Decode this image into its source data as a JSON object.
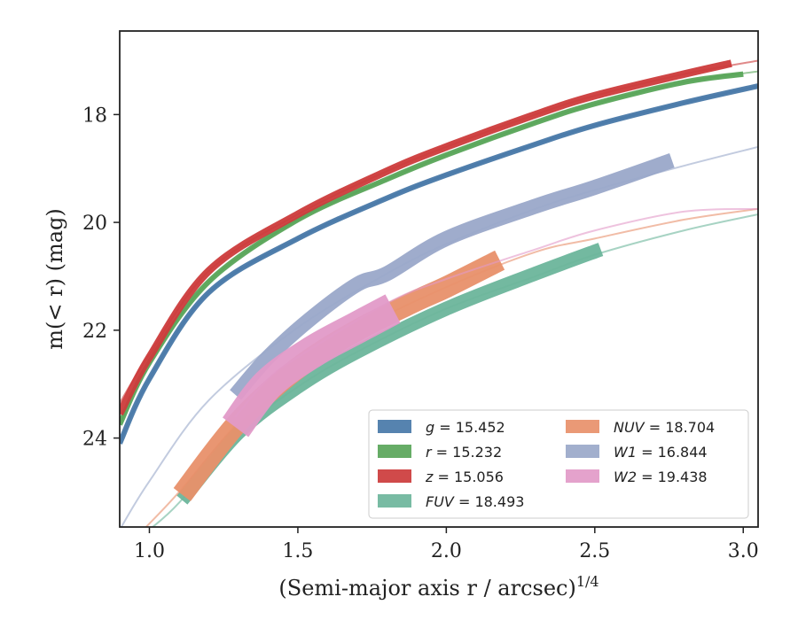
{
  "chart_data": {
    "type": "line",
    "xlabel": "(Semi-major axis r / arcsec)",
    "xlabel_sup": "1/4",
    "ylabel": "m(< r) (mag)",
    "xlim": [
      0.9,
      3.05
    ],
    "ylim": [
      25.65,
      16.45
    ],
    "y_inverted": true,
    "xticks": [
      1.0,
      1.5,
      2.0,
      2.5,
      3.0
    ],
    "xtick_labels": [
      "1.0",
      "1.5",
      "2.0",
      "2.5",
      "3.0"
    ],
    "yticks": [
      18,
      20,
      22,
      24
    ],
    "ytick_labels": [
      "18",
      "20",
      "22",
      "24"
    ],
    "grid": false,
    "legend_position": "lower-right",
    "legend_columns": 2,
    "series": [
      {
        "name": "g",
        "legend_label": "g = 15.452",
        "color": "#4878a8",
        "model_x": [
          0.9,
          1.0,
          1.2,
          1.5,
          1.8,
          2.0,
          2.3,
          2.5,
          2.8,
          3.05
        ],
        "model_y": [
          24.1,
          22.9,
          21.3,
          20.3,
          19.55,
          19.12,
          18.55,
          18.2,
          17.78,
          17.47
        ],
        "data_x": [
          0.9,
          1.0,
          1.2,
          1.5,
          1.8,
          2.0,
          2.3,
          2.5,
          2.8,
          3.05
        ],
        "data_y": [
          24.1,
          22.9,
          21.3,
          20.3,
          19.55,
          19.12,
          18.55,
          18.2,
          17.78,
          17.47
        ],
        "band": 0.05
      },
      {
        "name": "r",
        "legend_label": "r = 15.232",
        "color": "#59a559",
        "model_x": [
          0.9,
          1.0,
          1.2,
          1.5,
          1.8,
          2.0,
          2.3,
          2.5,
          2.8,
          3.05
        ],
        "model_y": [
          23.75,
          22.6,
          21.1,
          19.95,
          19.2,
          18.75,
          18.15,
          17.8,
          17.4,
          17.2
        ],
        "data_x": [
          0.9,
          1.0,
          1.2,
          1.5,
          1.8,
          2.0,
          2.3,
          2.5,
          2.8,
          3.0
        ],
        "data_y": [
          23.75,
          22.6,
          21.1,
          19.95,
          19.2,
          18.75,
          18.15,
          17.8,
          17.4,
          17.25
        ],
        "band": 0.05
      },
      {
        "name": "z",
        "legend_label": "z = 15.056",
        "color": "#cc3b3b",
        "model_x": [
          0.9,
          1.0,
          1.2,
          1.5,
          1.8,
          2.0,
          2.3,
          2.5,
          2.8,
          3.05
        ],
        "model_y": [
          23.35,
          22.45,
          20.9,
          19.85,
          19.05,
          18.6,
          18.0,
          17.65,
          17.25,
          17.0
        ],
        "data_x": [
          0.9,
          1.0,
          1.2,
          1.5,
          1.8,
          2.0,
          2.3,
          2.5,
          2.8,
          2.96
        ],
        "data_y": [
          23.55,
          22.5,
          20.9,
          19.85,
          19.05,
          18.6,
          18.0,
          17.65,
          17.25,
          17.05
        ],
        "band": 0.07
      },
      {
        "name": "FUV",
        "legend_label": "FUV = 18.493",
        "color": "#6cb59b",
        "model_x": [
          1.0,
          1.1,
          1.3,
          1.5,
          1.7,
          2.0,
          2.3,
          2.5,
          2.8,
          3.05
        ],
        "model_y": [
          25.7,
          25.2,
          23.9,
          23.05,
          22.4,
          21.6,
          21.0,
          20.6,
          20.15,
          19.85
        ],
        "data_x": [
          1.11,
          1.3,
          1.5,
          1.7,
          2.0,
          2.3,
          2.52
        ],
        "data_y": [
          25.15,
          23.9,
          23.05,
          22.4,
          21.6,
          20.95,
          20.5
        ],
        "band": 0.13
      },
      {
        "name": "NUV",
        "legend_label": "NUV = 18.704",
        "color": "#e8906a",
        "model_x": [
          0.98,
          1.1,
          1.3,
          1.5,
          1.7,
          2.0,
          2.3,
          2.5,
          2.8,
          3.05
        ],
        "model_y": [
          25.7,
          25.0,
          23.7,
          22.7,
          22.0,
          21.2,
          20.55,
          20.3,
          19.95,
          19.75
        ],
        "data_x": [
          1.11,
          1.3,
          1.5,
          1.7,
          1.9,
          2.0,
          2.18
        ],
        "data_y": [
          25.05,
          23.7,
          22.7,
          22.0,
          21.45,
          21.2,
          20.7
        ],
        "band": 0.2
      },
      {
        "name": "W1",
        "legend_label": "W1 = 16.844",
        "color": "#9aa8c9",
        "model_x": [
          0.9,
          1.0,
          1.2,
          1.5,
          1.8,
          2.0,
          2.3,
          2.5,
          2.8,
          3.05
        ],
        "model_y": [
          25.7,
          24.8,
          23.3,
          21.95,
          20.95,
          20.4,
          19.75,
          19.4,
          18.95,
          18.6
        ],
        "data_x": [
          1.29,
          1.4,
          1.54,
          1.7,
          1.8,
          2.0,
          2.3,
          2.5,
          2.76
        ],
        "data_y": [
          23.2,
          22.5,
          21.8,
          21.15,
          20.95,
          20.3,
          19.7,
          19.35,
          18.85
        ],
        "band": 0.14
      },
      {
        "name": "W2",
        "legend_label": "W2 = 19.438",
        "color": "#e29ac8",
        "model_x": [
          1.29,
          1.4,
          1.5,
          1.8,
          2.0,
          2.3,
          2.5,
          2.8,
          3.05
        ],
        "model_y": [
          23.6,
          22.9,
          22.5,
          21.5,
          21.05,
          20.5,
          20.15,
          19.8,
          19.75
        ],
        "data_x": [
          1.29,
          1.4,
          1.55,
          1.7,
          1.82
        ],
        "data_y": [
          23.8,
          23.0,
          22.4,
          21.95,
          21.6
        ],
        "band": 0.3
      }
    ]
  }
}
